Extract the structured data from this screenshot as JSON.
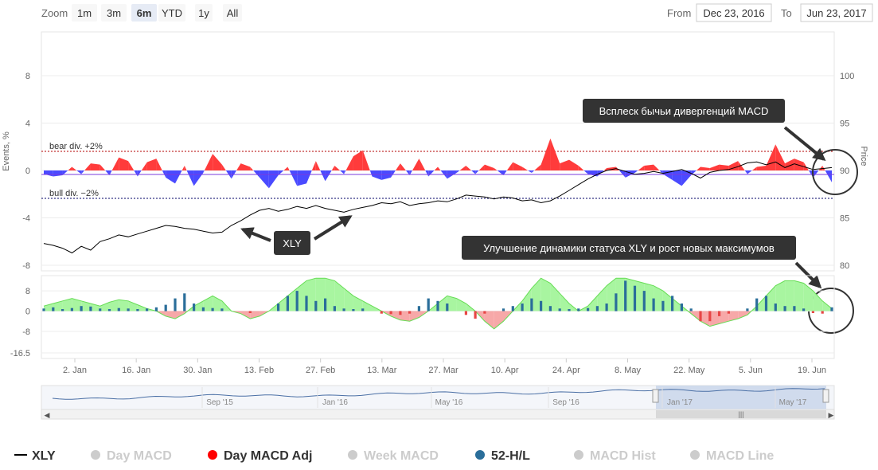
{
  "toolbar": {
    "zoom_label": "Zoom",
    "zoom_buttons": [
      "1m",
      "3m",
      "6m",
      "YTD",
      "1y",
      "All"
    ],
    "selected_zoom": "6m",
    "from_label": "From",
    "from_value": "Dec 23, 2016",
    "to_label": "To",
    "to_value": "Jun 23, 2017"
  },
  "colors": {
    "bear_fill": "#ff3b3b",
    "bull_fill": "#4a4aff",
    "hist_pos": "#a8f5a0",
    "hist_neg": "#f7a8a8",
    "bar_pos": "#2a6e9a",
    "bar_neg": "#e84545",
    "price_line": "#000000",
    "callout_bg": "#333333",
    "navigator_mask": "#c9d6ea",
    "navigator_line": "#4a6fa5"
  },
  "annotations": {
    "xly_label": "XLY",
    "bullish_callout": "Всплеск бычьи дивергенций MACD",
    "status_callout": "Улучшение динамики статуса XLY и рост новых максимумов"
  },
  "legend": [
    {
      "label": "XLY",
      "active": true,
      "symbol": "line",
      "color": "#000000"
    },
    {
      "label": "Day MACD",
      "active": false,
      "symbol": "dot",
      "color": "#cccccc"
    },
    {
      "label": "Day MACD Adj",
      "active": true,
      "symbol": "dot",
      "color": "#ff0000"
    },
    {
      "label": "Week MACD",
      "active": false,
      "symbol": "dot",
      "color": "#cccccc"
    },
    {
      "label": "52-H/L",
      "active": true,
      "symbol": "dot",
      "color": "#2a6e9a"
    },
    {
      "label": "MACD Hist",
      "active": false,
      "symbol": "dot",
      "color": "#cccccc"
    },
    {
      "label": "MACD Line",
      "active": false,
      "symbol": "dot",
      "color": "#cccccc"
    }
  ],
  "navigator": {
    "labels": [
      "Sep '15",
      "Jan '16",
      "May '16",
      "Sep '16",
      "Jan '17",
      "May '17"
    ]
  },
  "chart_data": [
    {
      "type": "area",
      "title": "",
      "ylabel_left": "Events, %",
      "ylabel_right": "Price",
      "left_ticks": [
        "8",
        "4",
        "0",
        "-4",
        "-8"
      ],
      "right_ticks": [
        "100",
        "95",
        "90",
        "85",
        "80"
      ],
      "ylim_left": [
        -8,
        8
      ],
      "ylim_right": [
        80,
        100
      ],
      "bands": [
        {
          "label": "bear div. +2%",
          "value": 2
        },
        {
          "label": "bull div. −2%",
          "value": -2
        }
      ],
      "series": [
        {
          "name": "XLY",
          "values": [
            82.3,
            82.1,
            81.8,
            81.3,
            82.0,
            81.6,
            82.5,
            82.8,
            83.2,
            83.0,
            83.3,
            83.6,
            83.9,
            84.2,
            84.1,
            83.9,
            83.8,
            83.6,
            83.4,
            83.5,
            84.2,
            84.7,
            85.3,
            85.8,
            86.0,
            85.7,
            85.9,
            86.2,
            86.0,
            86.3,
            86.0,
            85.8,
            85.6,
            85.9,
            86.1,
            86.3,
            86.6,
            86.5,
            86.7,
            86.3,
            86.5,
            86.6,
            86.8,
            86.7,
            87.0,
            87.4,
            87.3,
            87.2,
            87.0,
            87.2,
            87.1,
            86.8,
            86.9,
            86.6,
            86.8,
            87.3,
            87.9,
            88.5,
            89.1,
            89.6,
            90.0,
            90.2,
            89.9,
            89.6,
            89.7,
            89.9,
            89.7,
            89.9,
            90.1,
            89.7,
            89.2,
            89.8,
            90.0,
            90.1,
            90.4,
            90.8,
            90.9,
            90.6,
            90.9,
            90.3,
            90.7,
            90.4,
            90.1,
            90.2,
            90.3
          ]
        },
        {
          "name": "Day MACD Adj",
          "values": [
            -0.3,
            -0.5,
            -0.4,
            0.3,
            -0.3,
            0.6,
            0.5,
            -0.4,
            1.1,
            0.8,
            -0.5,
            0.7,
            1.0,
            -0.6,
            -1.1,
            0.4,
            -1.3,
            -0.2,
            1.4,
            0.5,
            -0.7,
            0.6,
            0.3,
            -0.6,
            -1.5,
            -0.4,
            0.3,
            -1.3,
            -1.1,
            0.8,
            -0.9,
            0.4,
            -0.3,
            1.2,
            1.7,
            -0.5,
            -0.8,
            -0.6,
            0.6,
            -0.4,
            1.0,
            -0.5,
            0.3,
            -0.7,
            -0.2,
            0.4,
            -0.3,
            0.5,
            0.2,
            -0.4,
            0.7,
            0.3,
            -0.2,
            0.5,
            2.7,
            0.6,
            0.9,
            0.4,
            -0.3,
            -0.5,
            0.2,
            0.3,
            -0.6,
            -0.2,
            0.4,
            0.5,
            -0.3,
            -0.8,
            -1.3,
            -0.4,
            0.3,
            0.2,
            0.5,
            0.4,
            0.8,
            -0.3,
            0.3,
            0.4,
            2.2,
            0.6,
            1.0,
            0.7,
            -0.6,
            0.4,
            -1.0
          ]
        }
      ]
    },
    {
      "type": "bar",
      "title": "",
      "left_ticks": [
        "8",
        "0",
        "-8",
        "-16.5"
      ],
      "ylim": [
        -16.5,
        14
      ],
      "x_tick_labels": [
        "2. Jan",
        "16. Jan",
        "30. Jan",
        "13. Feb",
        "27. Feb",
        "13. Mar",
        "27. Mar",
        "10. Apr",
        "24. Apr",
        "8. May",
        "22. May",
        "5. Jun",
        "19. Jun"
      ],
      "series": [
        {
          "name": "MACD Hist",
          "values": [
            2.0,
            3.0,
            4.0,
            5.0,
            4.0,
            3.0,
            2.0,
            3.5,
            4.5,
            4.0,
            2.5,
            1.0,
            0.0,
            -2.0,
            -3.0,
            -1.0,
            2.0,
            4.0,
            6.0,
            4.0,
            0.0,
            -1.0,
            -3.0,
            -2.0,
            0.0,
            3.0,
            6.0,
            9.0,
            12.0,
            13.0,
            13.0,
            12.0,
            9.0,
            6.0,
            4.0,
            2.0,
            0.0,
            -2.0,
            -3.5,
            -4.0,
            -2.5,
            0.0,
            3.0,
            6.0,
            5.0,
            3.0,
            0.0,
            -4.0,
            -7.0,
            -4.0,
            0.0,
            4.0,
            9.0,
            13.0,
            11.0,
            7.0,
            3.0,
            0.0,
            2.0,
            6.0,
            10.0,
            13.0,
            13.0,
            12.0,
            11.0,
            10.0,
            8.0,
            5.0,
            2.0,
            -1.0,
            -4.0,
            -6.0,
            -5.0,
            -4.0,
            -3.0,
            -1.5,
            2.0,
            6.0,
            10.0,
            12.0,
            12.0,
            11.0,
            8.0,
            4.0,
            1.0
          ]
        },
        {
          "name": "52-H/L",
          "values": [
            1.0,
            1.5,
            0.8,
            1.2,
            2.0,
            1.8,
            1.0,
            0.8,
            1.2,
            1.0,
            0.8,
            1.0,
            1.5,
            2.5,
            5.0,
            7.0,
            3.0,
            1.5,
            1.2,
            1.0,
            0.0,
            0.0,
            -0.8,
            0.0,
            0.0,
            3.0,
            6.0,
            8.0,
            6.0,
            4.0,
            5.0,
            2.0,
            1.0,
            0.8,
            1.0,
            0.0,
            -1.0,
            -1.2,
            -1.5,
            -1.0,
            2.0,
            5.0,
            4.0,
            3.0,
            0.0,
            -1.5,
            -3.0,
            -1.0,
            0.0,
            1.0,
            2.0,
            3.0,
            5.0,
            4.0,
            2.0,
            1.0,
            0.8,
            1.0,
            1.2,
            2.0,
            3.0,
            7.0,
            12.0,
            10.0,
            8.0,
            5.0,
            4.0,
            6.0,
            3.0,
            1.0,
            -4.0,
            -4.0,
            -2.0,
            -1.0,
            0.0,
            1.0,
            5.0,
            6.0,
            3.0,
            2.0,
            2.0,
            1.0,
            -0.8,
            -1.0,
            1.5
          ]
        }
      ]
    }
  ]
}
